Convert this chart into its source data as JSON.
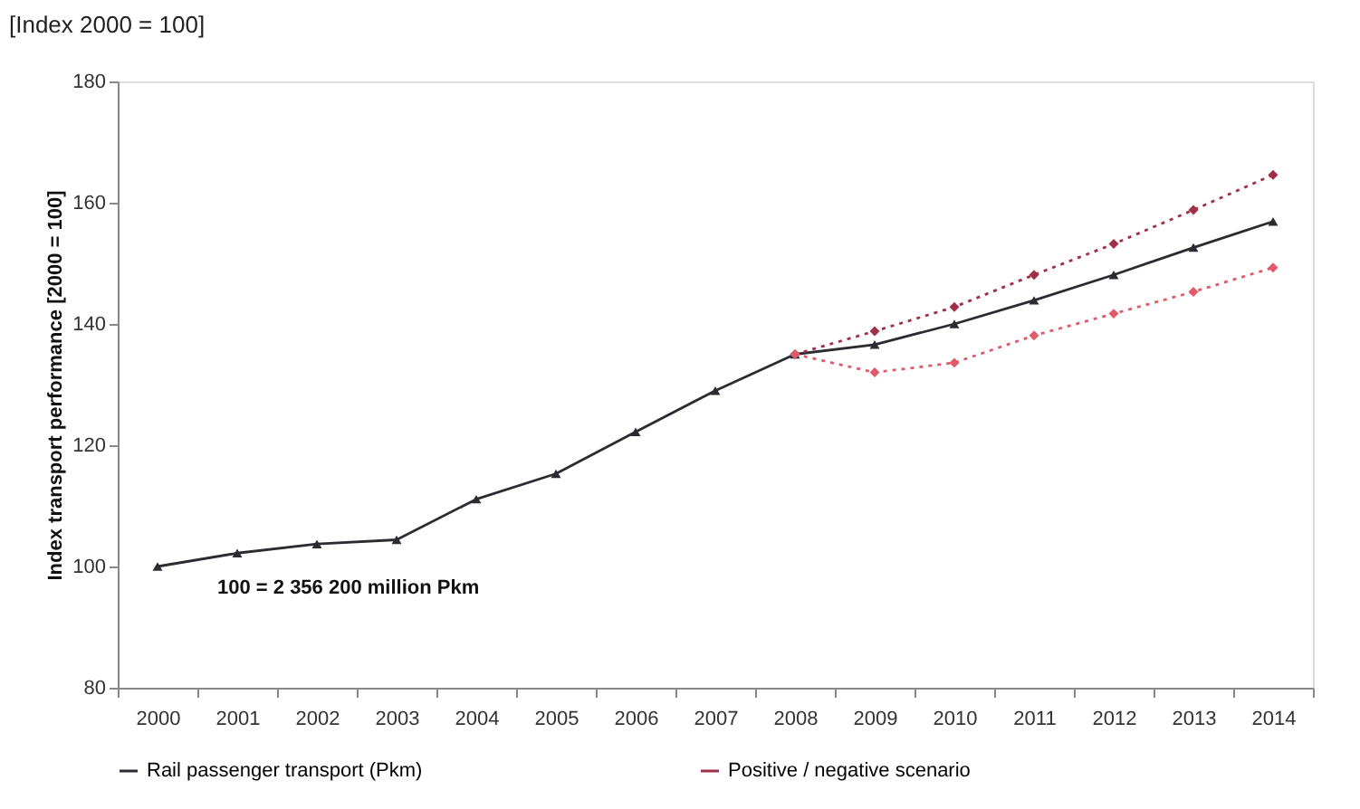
{
  "chart_data": {
    "type": "line",
    "title": "[Index 2000 = 100]",
    "ylabel": "Index transport performance [2000 = 100]",
    "categories": [
      "2000",
      "2001",
      "2002",
      "2003",
      "2004",
      "2005",
      "2006",
      "2007",
      "2008",
      "2009",
      "2010",
      "2011",
      "2012",
      "2013",
      "2014"
    ],
    "series": [
      {
        "name": "Rail passenger transport (Pkm)",
        "color": "#2b2b33",
        "marker": "triangle",
        "line_style": "solid",
        "values": [
          100,
          102.2,
          103.7,
          104.4,
          111.1,
          115.3,
          122.2,
          129.0,
          135.0,
          136.6,
          140.0,
          143.9,
          148.1,
          152.6,
          156.9
        ]
      },
      {
        "name": "Positive / negative scenario",
        "color": "#a0304a",
        "marker": "diamond",
        "line_style": "dotted",
        "values": [
          null,
          null,
          null,
          null,
          null,
          null,
          null,
          null,
          135.0,
          138.8,
          142.8,
          148.1,
          153.2,
          158.8,
          164.6
        ]
      },
      {
        "color": "#e05a6a",
        "marker": "diamond",
        "line_style": "dotted",
        "values": [
          null,
          null,
          null,
          null,
          null,
          null,
          null,
          null,
          135.0,
          132.0,
          133.6,
          138.1,
          141.7,
          145.3,
          149.3
        ]
      }
    ],
    "ylim": [
      80,
      180
    ],
    "yticks": [
      80,
      100,
      120,
      140,
      160,
      180
    ],
    "grid": false,
    "legend": "bottom",
    "annotations": [
      "100 = 2 356 200 million Pkm"
    ]
  }
}
